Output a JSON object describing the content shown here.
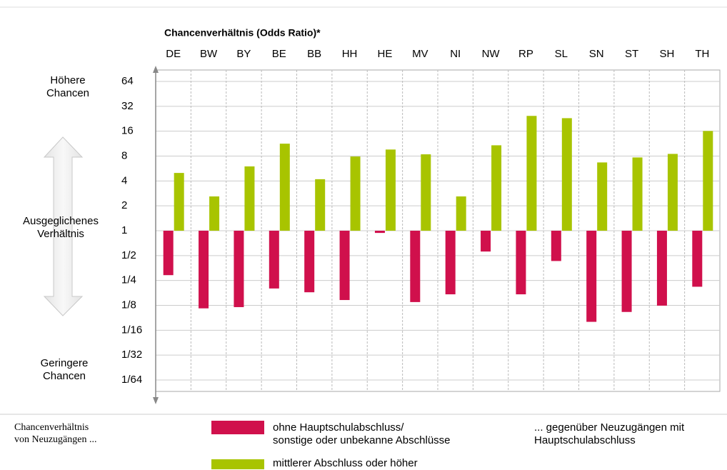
{
  "chart_data": {
    "type": "bar",
    "title": "Chancenverhältnis (Odds Ratio)*",
    "categories": [
      "DE",
      "BW",
      "BY",
      "BE",
      "BB",
      "HH",
      "HE",
      "MV",
      "NI",
      "NW",
      "RP",
      "SL",
      "SN",
      "ST",
      "SH",
      "TH"
    ],
    "series": [
      {
        "name": "ohne Hauptschulabschluss/\nsonstige oder unbekanne Abschlüsse",
        "color": "#d0104c",
        "values": [
          0.29,
          0.115,
          0.119,
          0.2,
          0.18,
          0.145,
          0.94,
          0.137,
          0.17,
          0.56,
          0.17,
          0.43,
          0.079,
          0.104,
          0.124,
          0.21
        ]
      },
      {
        "name": "mittlerer Abschluss oder höher",
        "color": "#a8c400",
        "values": [
          5.0,
          2.6,
          6.0,
          11.3,
          4.2,
          7.9,
          9.6,
          8.4,
          2.6,
          10.8,
          24.5,
          23,
          6.7,
          7.7,
          8.5,
          16.1
        ]
      }
    ],
    "log_scale": true,
    "ylim": [
      0.015625,
      64
    ],
    "yticks": [
      64,
      32,
      16,
      8,
      4,
      2,
      1,
      {
        "value": 0.5,
        "label": "1/2"
      },
      {
        "value": 0.25,
        "label": "1/4"
      },
      {
        "value": 0.125,
        "label": "1/8"
      },
      {
        "value": 0.0625,
        "label": "1/16"
      },
      {
        "value": 0.03125,
        "label": "1/32"
      },
      {
        "value": 0.015625,
        "label": "1/64"
      }
    ],
    "grid": true,
    "axis_labels": {
      "top": "Höhere\nChancen",
      "middle": "Ausgeglichenes\nVerhältnis",
      "bottom": "Geringere\nChancen"
    },
    "legend_title": "Chancenverhältnis\nvon Neuzugängen ...",
    "legend_note": "... gegenüber Neuzugängen mit\nHauptschulabschluss"
  }
}
